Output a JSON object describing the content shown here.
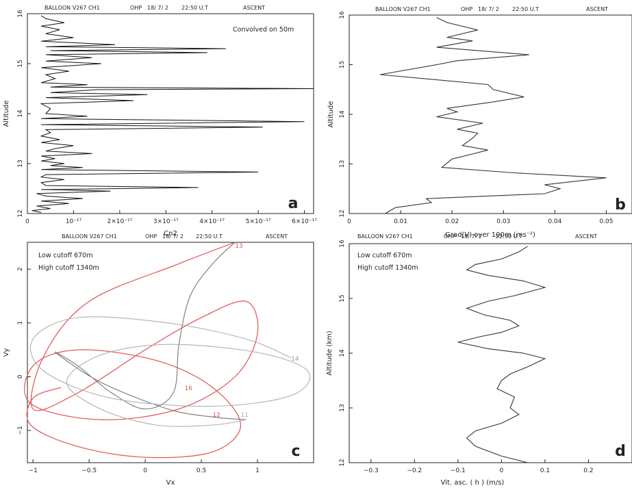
{
  "chart_data": [
    {
      "id": "a",
      "type": "line",
      "panel_label": "a",
      "header": {
        "title": "BALLOON V267 CH1",
        "site": "OHP",
        "date": "18/ 7/ 2",
        "time": "22:50 U.T",
        "mode": "ASCENT"
      },
      "annotation": "Convolved on    50m",
      "xlabel": "Cn2",
      "ylabel": "Altitude",
      "xlim": [
        0,
        6.2e-17
      ],
      "ylim": [
        12,
        16
      ],
      "xticks": [
        {
          "v": 0,
          "label": "0"
        },
        {
          "v": 1e-17,
          "label": "10⁻¹⁷"
        },
        {
          "v": 2e-17,
          "label": "2×10⁻¹⁷"
        },
        {
          "v": 3e-17,
          "label": "3×10⁻¹⁷"
        },
        {
          "v": 4e-17,
          "label": "4×10⁻¹⁷"
        },
        {
          "v": 5e-17,
          "label": "5×10⁻¹⁷"
        },
        {
          "v": 6e-17,
          "label": "6×10⁻¹⁷"
        }
      ],
      "yticks": [
        {
          "v": 12,
          "label": "12"
        },
        {
          "v": 13,
          "label": "13"
        },
        {
          "v": 14,
          "label": "14"
        },
        {
          "v": 15,
          "label": "15"
        },
        {
          "v": 16,
          "label": "16"
        }
      ],
      "series": [
        {
          "color": "#111111",
          "points": [
            [
              3e-18,
              12.02
            ],
            [
              1e-18,
              12.06
            ],
            [
              5e-18,
              12.1
            ],
            [
              2e-18,
              12.15
            ],
            [
              9e-18,
              12.2
            ],
            [
              3e-18,
              12.25
            ],
            [
              1.2e-17,
              12.3
            ],
            [
              4e-18,
              12.35
            ],
            [
              2e-18,
              12.4
            ],
            [
              1.8e-17,
              12.45
            ],
            [
              3e-18,
              12.48
            ],
            [
              3.7e-17,
              12.52
            ],
            [
              4e-18,
              12.56
            ],
            [
              3e-18,
              12.62
            ],
            [
              8e-18,
              12.68
            ],
            [
              3e-18,
              12.73
            ],
            [
              4e-18,
              12.78
            ],
            [
              5e-17,
              12.83
            ],
            [
              3e-18,
              12.88
            ],
            [
              1.2e-17,
              12.92
            ],
            [
              5e-18,
              12.96
            ],
            [
              8e-18,
              13.0
            ],
            [
              3e-18,
              13.05
            ],
            [
              6e-18,
              13.1
            ],
            [
              3e-18,
              13.15
            ],
            [
              1.4e-17,
              13.2
            ],
            [
              4e-18,
              13.25
            ],
            [
              6e-18,
              13.3
            ],
            [
              1e-17,
              13.36
            ],
            [
              3e-18,
              13.42
            ],
            [
              7e-18,
              13.48
            ],
            [
              3e-18,
              13.55
            ],
            [
              5e-18,
              13.62
            ],
            [
              4e-18,
              13.68
            ],
            [
              5.1e-17,
              13.73
            ],
            [
              3e-18,
              13.78
            ],
            [
              6e-17,
              13.84
            ],
            [
              3e-18,
              13.9
            ],
            [
              1.3e-17,
              13.95
            ],
            [
              4e-18,
              14.0
            ],
            [
              5e-18,
              14.1
            ],
            [
              3e-18,
              14.2
            ],
            [
              2.3e-17,
              14.26
            ],
            [
              4e-18,
              14.32
            ],
            [
              2.6e-17,
              14.38
            ],
            [
              5e-18,
              14.42
            ],
            [
              1.5e-17,
              14.48
            ],
            [
              6.2e-17,
              14.5
            ],
            [
              5e-18,
              14.53
            ],
            [
              1.3e-17,
              14.58
            ],
            [
              3e-18,
              14.62
            ],
            [
              6e-18,
              14.7
            ],
            [
              4e-18,
              14.78
            ],
            [
              9e-18,
              14.85
            ],
            [
              3e-18,
              14.92
            ],
            [
              1.6e-17,
              15.0
            ],
            [
              4e-18,
              15.05
            ],
            [
              1.4e-17,
              15.12
            ],
            [
              4e-18,
              15.18
            ],
            [
              3.9e-17,
              15.22
            ],
            [
              5e-18,
              15.26
            ],
            [
              4.3e-17,
              15.3
            ],
            [
              4e-18,
              15.34
            ],
            [
              1.9e-17,
              15.38
            ],
            [
              3e-18,
              15.45
            ],
            [
              1e-17,
              15.52
            ],
            [
              4e-18,
              15.6
            ],
            [
              7e-18,
              15.68
            ],
            [
              3e-18,
              15.75
            ],
            [
              8e-18,
              15.82
            ],
            [
              4e-18,
              15.9
            ],
            [
              3e-18,
              15.96
            ]
          ]
        }
      ]
    },
    {
      "id": "b",
      "type": "line",
      "panel_label": "b",
      "header": {
        "title": "BALLOON V267 CH1",
        "site": "OHP",
        "date": "18/ 7/ 2",
        "time": "22:50 U.T",
        "mode": "ASCENT"
      },
      "xlabel": "Grad(V) over  100m (ms⁻²)",
      "ylabel": "Altitude",
      "xlim": [
        0,
        0.055
      ],
      "ylim": [
        12,
        16
      ],
      "xticks": [
        {
          "v": 0,
          "label": "0"
        },
        {
          "v": 0.01,
          "label": "0.01"
        },
        {
          "v": 0.02,
          "label": "0.02"
        },
        {
          "v": 0.03,
          "label": "0.03"
        },
        {
          "v": 0.04,
          "label": "0.04"
        },
        {
          "v": 0.05,
          "label": "0.05"
        }
      ],
      "yticks": [
        {
          "v": 12,
          "label": "12"
        },
        {
          "v": 13,
          "label": "13"
        },
        {
          "v": 14,
          "label": "14"
        },
        {
          "v": 15,
          "label": "15"
        },
        {
          "v": 16,
          "label": "16"
        }
      ],
      "series": [
        {
          "color": "#333333",
          "points": [
            [
              0.007,
              12.0
            ],
            [
              0.009,
              12.12
            ],
            [
              0.016,
              12.22
            ],
            [
              0.015,
              12.3
            ],
            [
              0.038,
              12.4
            ],
            [
              0.041,
              12.5
            ],
            [
              0.038,
              12.58
            ],
            [
              0.05,
              12.72
            ],
            [
              0.032,
              12.82
            ],
            [
              0.018,
              12.93
            ],
            [
              0.02,
              13.1
            ],
            [
              0.024,
              13.2
            ],
            [
              0.027,
              13.28
            ],
            [
              0.022,
              13.37
            ],
            [
              0.024,
              13.52
            ],
            [
              0.025,
              13.62
            ],
            [
              0.021,
              13.7
            ],
            [
              0.026,
              13.82
            ],
            [
              0.017,
              13.95
            ],
            [
              0.021,
              14.05
            ],
            [
              0.019,
              14.12
            ],
            [
              0.028,
              14.25
            ],
            [
              0.034,
              14.35
            ],
            [
              0.028,
              14.5
            ],
            [
              0.027,
              14.6
            ],
            [
              0.006,
              14.8
            ],
            [
              0.017,
              15.0
            ],
            [
              0.021,
              15.08
            ],
            [
              0.035,
              15.2
            ],
            [
              0.017,
              15.35
            ],
            [
              0.024,
              15.48
            ],
            [
              0.019,
              15.55
            ],
            [
              0.025,
              15.7
            ],
            [
              0.019,
              15.85
            ],
            [
              0.017,
              15.95
            ]
          ]
        }
      ]
    },
    {
      "id": "c",
      "type": "line",
      "panel_label": "c",
      "header": {
        "title": "BALLOON V267 CH1",
        "site": "OHP",
        "date": "18/ 7/ 2",
        "time": "22:50 U.T",
        "mode": "ASCENT"
      },
      "annotations": [
        "Low cutoff  670m",
        "High cutoff 1340m"
      ],
      "xlabel": "Vx",
      "ylabel": "Vy",
      "xlim": [
        -1.05,
        1.5
      ],
      "ylim": [
        -1.6,
        2.5
      ],
      "xticks": [
        {
          "v": -1,
          "label": "−1"
        },
        {
          "v": -0.5,
          "label": "−0.5"
        },
        {
          "v": 0,
          "label": "0"
        },
        {
          "v": 0.5,
          "label": "0.5"
        },
        {
          "v": 1,
          "label": "1"
        }
      ],
      "yticks": [
        {
          "v": -1,
          "label": "−1"
        },
        {
          "v": 0,
          "label": "0"
        },
        {
          "v": 1,
          "label": "1"
        },
        {
          "v": 2,
          "label": "2"
        }
      ],
      "point_labels": [
        {
          "text": "13",
          "x": 0.8,
          "y": 2.4,
          "color": "#d9534f"
        },
        {
          "text": "14",
          "x": 1.3,
          "y": 0.3,
          "color": "#999999"
        },
        {
          "text": "16",
          "x": 0.35,
          "y": -0.25,
          "color": "#d9534f"
        },
        {
          "text": "12",
          "x": 0.6,
          "y": -0.75,
          "color": "#d9534f"
        },
        {
          "text": "11",
          "x": 0.85,
          "y": -0.75,
          "color": "#aaaaaa"
        }
      ],
      "series": [
        {
          "color": "#e05d5d",
          "points": [
            [
              -0.75,
              -0.2
            ],
            [
              -1.0,
              -0.4
            ],
            [
              -1.02,
              -0.9
            ],
            [
              -0.6,
              -1.3
            ],
            [
              0.0,
              -1.5
            ],
            [
              0.6,
              -1.4
            ],
            [
              0.85,
              -0.9
            ],
            [
              0.6,
              -0.2
            ],
            [
              0.1,
              0.3
            ],
            [
              -0.6,
              0.5
            ],
            [
              -1.0,
              0.2
            ],
            [
              -1.02,
              -0.5
            ],
            [
              -0.4,
              -0.8
            ],
            [
              0.3,
              -0.6
            ],
            [
              0.8,
              0.0
            ],
            [
              1.0,
              0.8
            ],
            [
              0.9,
              1.4
            ],
            [
              0.5,
              1.1
            ],
            [
              0.0,
              0.5
            ],
            [
              -0.6,
              -0.3
            ],
            [
              -1.0,
              -0.6
            ],
            [
              -0.9,
              0.4
            ],
            [
              -0.5,
              1.4
            ],
            [
              0.3,
              2.1
            ],
            [
              0.8,
              2.5
            ]
          ]
        },
        {
          "color": "#777777",
          "points": [
            [
              0.8,
              2.5
            ],
            [
              0.6,
              2.1
            ],
            [
              0.4,
              1.5
            ],
            [
              0.3,
              0.6
            ],
            [
              0.25,
              -0.3
            ],
            [
              0.0,
              -0.6
            ],
            [
              -0.3,
              -0.3
            ],
            [
              -0.6,
              0.2
            ],
            [
              -0.8,
              0.45
            ],
            [
              -0.4,
              -0.1
            ],
            [
              0.2,
              -0.6
            ],
            [
              0.6,
              -0.75
            ],
            [
              0.9,
              -0.8
            ]
          ]
        },
        {
          "color": "#b0b0b0",
          "points": [
            [
              0.9,
              -0.8
            ],
            [
              0.6,
              -0.9
            ],
            [
              0.1,
              -0.9
            ],
            [
              -0.4,
              -0.6
            ],
            [
              -0.7,
              -0.1
            ],
            [
              -0.4,
              0.4
            ],
            [
              0.2,
              0.6
            ],
            [
              1.0,
              0.45
            ],
            [
              1.45,
              0.1
            ],
            [
              1.3,
              -0.35
            ],
            [
              0.6,
              -0.55
            ],
            [
              -0.3,
              -0.4
            ],
            [
              -0.9,
              0.1
            ],
            [
              -1.0,
              0.7
            ],
            [
              -0.6,
              1.1
            ],
            [
              0.2,
              1.0
            ],
            [
              0.9,
              0.7
            ],
            [
              1.3,
              0.35
            ]
          ]
        }
      ]
    },
    {
      "id": "d",
      "type": "line",
      "panel_label": "d",
      "header": {
        "title": "BALLOON V267 CH1",
        "site": "OHP",
        "date": "18/ 7/ 2",
        "time": "22:50 U.T",
        "mode": "ASCENT"
      },
      "annotations": [
        "Low cutoff  670m",
        "High cutoff 1340m"
      ],
      "xlabel": "Vit. asc. ( h )  (m/s)",
      "ylabel": "Altitude (km)",
      "xlim": [
        -0.35,
        0.3
      ],
      "ylim": [
        12,
        16
      ],
      "xticks": [
        {
          "v": -0.3,
          "label": "−0.3"
        },
        {
          "v": -0.2,
          "label": "−0.2"
        },
        {
          "v": -0.1,
          "label": "−0.1"
        },
        {
          "v": 0,
          "label": "0"
        },
        {
          "v": 0.1,
          "label": "0.1"
        },
        {
          "v": 0.2,
          "label": "0.2"
        }
      ],
      "yticks": [
        {
          "v": 12,
          "label": "12"
        },
        {
          "v": 13,
          "label": "13"
        },
        {
          "v": 14,
          "label": "14"
        },
        {
          "v": 15,
          "label": "15"
        },
        {
          "v": 16,
          "label": "16"
        }
      ],
      "series": [
        {
          "color": "#333333",
          "points": [
            [
              0.06,
              12.0
            ],
            [
              0.0,
              12.12
            ],
            [
              -0.06,
              12.3
            ],
            [
              -0.08,
              12.45
            ],
            [
              -0.06,
              12.58
            ],
            [
              0.0,
              12.72
            ],
            [
              0.04,
              12.88
            ],
            [
              0.02,
              13.0
            ],
            [
              0.03,
              13.2
            ],
            [
              -0.01,
              13.35
            ],
            [
              0.0,
              13.5
            ],
            [
              0.02,
              13.62
            ],
            [
              0.06,
              13.75
            ],
            [
              0.1,
              13.9
            ],
            [
              0.05,
              14.0
            ],
            [
              -0.03,
              14.08
            ],
            [
              -0.1,
              14.2
            ],
            [
              -0.05,
              14.3
            ],
            [
              0.0,
              14.38
            ],
            [
              0.04,
              14.5
            ],
            [
              0.02,
              14.6
            ],
            [
              -0.04,
              14.7
            ],
            [
              -0.08,
              14.82
            ],
            [
              -0.03,
              14.95
            ],
            [
              0.03,
              15.05
            ],
            [
              0.1,
              15.2
            ],
            [
              0.05,
              15.32
            ],
            [
              -0.03,
              15.42
            ],
            [
              -0.08,
              15.52
            ],
            [
              -0.06,
              15.62
            ],
            [
              0.0,
              15.72
            ],
            [
              0.04,
              15.85
            ],
            [
              0.06,
              15.95
            ]
          ]
        }
      ]
    }
  ]
}
